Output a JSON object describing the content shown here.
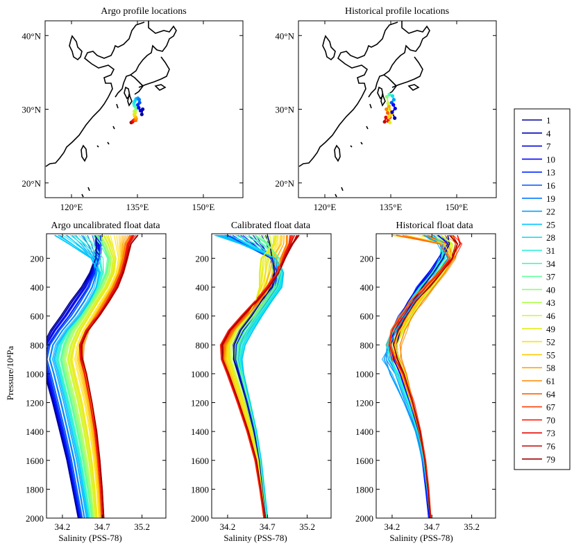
{
  "maps": [
    {
      "title": "Argo profile locations",
      "x_ticks": [
        "120°E",
        "135°E",
        "150°E"
      ],
      "y_ticks": [
        "20°N",
        "30°N",
        "40°N"
      ],
      "track_points": [
        [
          133.6,
          28.2,
          79
        ],
        [
          133.9,
          28.3,
          76
        ],
        [
          134.0,
          28.4,
          73
        ],
        [
          134.2,
          28.5,
          70
        ],
        [
          134.4,
          28.6,
          67
        ],
        [
          134.6,
          28.5,
          64
        ],
        [
          134.7,
          28.7,
          61
        ],
        [
          134.6,
          28.9,
          58
        ],
        [
          134.4,
          29.1,
          55
        ],
        [
          134.3,
          29.3,
          52
        ],
        [
          134.5,
          29.5,
          49
        ],
        [
          134.3,
          29.7,
          46
        ],
        [
          134.6,
          29.9,
          43
        ],
        [
          134.9,
          30.1,
          40
        ],
        [
          134.6,
          30.3,
          37
        ],
        [
          134.3,
          30.5,
          34
        ],
        [
          134.2,
          30.8,
          31
        ],
        [
          134.4,
          31.1,
          28
        ],
        [
          134.7,
          31.4,
          25
        ],
        [
          135.1,
          31.5,
          22
        ],
        [
          135.4,
          31.3,
          19
        ],
        [
          135.5,
          30.9,
          16
        ],
        [
          135.1,
          30.6,
          13
        ],
        [
          135.3,
          30.2,
          10
        ],
        [
          135.7,
          29.8,
          7
        ],
        [
          136.2,
          30.0,
          4
        ],
        [
          136.0,
          29.3,
          1
        ]
      ]
    },
    {
      "title": "Historical profile locations",
      "x_ticks": [
        "120°E",
        "135°E",
        "150°E"
      ],
      "y_ticks": [
        "20°N",
        "30°N",
        "40°N"
      ],
      "track_points": [
        [
          133.6,
          28.3,
          76
        ],
        [
          133.9,
          28.9,
          73
        ],
        [
          134.4,
          28.4,
          70
        ],
        [
          134.8,
          28.9,
          67
        ],
        [
          134.3,
          29.5,
          64
        ],
        [
          134.0,
          30.0,
          61
        ],
        [
          134.6,
          30.4,
          58
        ],
        [
          135.2,
          29.4,
          55
        ],
        [
          134.6,
          29.0,
          52
        ],
        [
          134.8,
          28.2,
          49
        ],
        [
          134.4,
          30.8,
          46
        ],
        [
          134.1,
          31.7,
          40
        ],
        [
          134.7,
          32.0,
          34
        ],
        [
          135.4,
          31.8,
          28
        ],
        [
          135.7,
          31.3,
          22
        ],
        [
          135.2,
          30.9,
          16
        ],
        [
          135.6,
          30.6,
          10
        ],
        [
          136.0,
          30.1,
          7
        ],
        [
          135.3,
          29.6,
          4
        ],
        [
          135.9,
          28.8,
          1
        ]
      ]
    }
  ],
  "chart_data": [
    {
      "type": "line",
      "title": "Argo uncalibrated float data",
      "xlabel": "Salinity (PSS-78)",
      "ylabel": "Pressure/10⁴Pa",
      "xlim": [
        34.0,
        35.5
      ],
      "ylim": [
        2000,
        30
      ],
      "x_ticks": [
        34.2,
        34.7,
        35.2
      ],
      "y_ticks": [
        200,
        400,
        600,
        800,
        1000,
        1200,
        1400,
        1600,
        1800,
        2000
      ],
      "pressure_levels": [
        40,
        100,
        200,
        300,
        400,
        500,
        600,
        700,
        800,
        900,
        1000,
        1200,
        1400,
        1600,
        1800,
        2000
      ],
      "series": [
        {
          "cycle": 1,
          "values": [
            34.62,
            34.63,
            34.62,
            34.55,
            34.44,
            34.3,
            34.18,
            34.05,
            33.96,
            33.93,
            33.98,
            34.08,
            34.17,
            34.26,
            34.33,
            34.4
          ]
        },
        {
          "cycle": 13,
          "values": [
            34.68,
            34.68,
            34.66,
            34.6,
            34.52,
            34.4,
            34.28,
            34.14,
            34.02,
            33.98,
            34.03,
            34.12,
            34.21,
            34.29,
            34.36,
            34.43
          ]
        },
        {
          "cycle": 25,
          "values": [
            34.1,
            34.28,
            34.56,
            34.66,
            34.63,
            34.54,
            34.42,
            34.26,
            34.14,
            34.1,
            34.15,
            34.24,
            34.32,
            34.4,
            34.46,
            34.52
          ]
        },
        {
          "cycle": 37,
          "values": [
            34.62,
            34.7,
            34.78,
            34.75,
            34.67,
            34.56,
            34.44,
            34.3,
            34.22,
            34.18,
            34.22,
            34.31,
            34.39,
            34.46,
            34.52,
            34.57
          ]
        },
        {
          "cycle": 49,
          "values": [
            34.75,
            34.8,
            34.86,
            34.84,
            34.76,
            34.64,
            34.53,
            34.42,
            34.34,
            34.3,
            34.34,
            34.43,
            34.5,
            34.56,
            34.6,
            34.63
          ]
        },
        {
          "cycle": 61,
          "values": [
            35.05,
            35.0,
            34.97,
            34.92,
            34.84,
            34.74,
            34.63,
            34.52,
            34.46,
            34.45,
            34.49,
            34.56,
            34.61,
            34.65,
            34.68,
            34.7
          ]
        },
        {
          "cycle": 70,
          "values": [
            35.08,
            35.02,
            34.99,
            34.94,
            34.87,
            34.76,
            34.64,
            34.5,
            34.42,
            34.43,
            34.48,
            34.55,
            34.61,
            34.65,
            34.68,
            34.7
          ]
        },
        {
          "cycle": 79,
          "values": [
            35.15,
            35.06,
            35.01,
            34.96,
            34.89,
            34.78,
            34.66,
            34.52,
            34.44,
            34.45,
            34.5,
            34.57,
            34.63,
            34.67,
            34.7,
            34.72
          ]
        }
      ]
    },
    {
      "type": "line",
      "title": "Calibrated float data",
      "xlabel": "Salinity (PSS-78)",
      "ylabel": "",
      "xlim": [
        34.0,
        35.5
      ],
      "ylim": [
        2000,
        30
      ],
      "x_ticks": [
        34.2,
        34.7,
        35.2
      ],
      "y_ticks": [
        200,
        400,
        600,
        800,
        1000,
        1200,
        1400,
        1600,
        1800,
        2000
      ],
      "pressure_levels": [
        40,
        100,
        200,
        300,
        400,
        500,
        600,
        700,
        800,
        900,
        1000,
        1200,
        1400,
        1600,
        1800,
        2000
      ],
      "series": [
        {
          "cycle": 1,
          "values": [
            34.7,
            34.73,
            34.76,
            34.79,
            34.76,
            34.62,
            34.5,
            34.36,
            34.28,
            34.28,
            34.34,
            34.44,
            34.53,
            34.6,
            34.64,
            34.68
          ]
        },
        {
          "cycle": 13,
          "values": [
            34.2,
            34.4,
            34.75,
            34.82,
            34.8,
            34.68,
            34.55,
            34.4,
            34.31,
            34.3,
            34.35,
            34.45,
            34.54,
            34.61,
            34.65,
            34.69
          ]
        },
        {
          "cycle": 25,
          "values": [
            34.05,
            34.38,
            34.8,
            34.9,
            34.88,
            34.75,
            34.63,
            34.52,
            34.42,
            34.38,
            34.4,
            34.48,
            34.56,
            34.62,
            34.66,
            34.7
          ]
        },
        {
          "cycle": 37,
          "values": [
            34.55,
            34.7,
            34.85,
            34.86,
            34.8,
            34.68,
            34.55,
            34.42,
            34.34,
            34.32,
            34.37,
            34.47,
            34.55,
            34.61,
            34.65,
            34.69
          ]
        },
        {
          "cycle": 49,
          "values": [
            34.8,
            34.78,
            34.62,
            34.6,
            34.6,
            34.55,
            34.45,
            34.3,
            34.22,
            34.22,
            34.28,
            34.4,
            34.5,
            34.58,
            34.63,
            34.67
          ]
        },
        {
          "cycle": 61,
          "values": [
            34.95,
            34.95,
            34.88,
            34.83,
            34.73,
            34.6,
            34.44,
            34.28,
            34.17,
            34.15,
            34.21,
            34.33,
            34.45,
            34.55,
            34.61,
            34.66
          ]
        },
        {
          "cycle": 70,
          "values": [
            35.0,
            34.98,
            34.9,
            34.82,
            34.7,
            34.55,
            34.38,
            34.22,
            34.12,
            34.13,
            34.2,
            34.33,
            34.45,
            34.55,
            34.61,
            34.66
          ]
        },
        {
          "cycle": 79,
          "values": [
            35.1,
            35.02,
            34.92,
            34.84,
            34.72,
            34.56,
            34.39,
            34.23,
            34.13,
            34.14,
            34.21,
            34.34,
            34.46,
            34.56,
            34.62,
            34.67
          ]
        }
      ]
    },
    {
      "type": "line",
      "title": "Historical  float data",
      "xlabel": "Salinity (PSS-78)",
      "ylabel": "",
      "xlim": [
        34.0,
        35.5
      ],
      "ylim": [
        2000,
        30
      ],
      "x_ticks": [
        34.2,
        34.7,
        35.2
      ],
      "y_ticks": [
        200,
        400,
        600,
        800,
        1000,
        1200,
        1400,
        1600,
        1800,
        2000
      ],
      "pressure_levels": [
        40,
        100,
        200,
        300,
        400,
        500,
        600,
        700,
        800,
        900,
        1000,
        1200,
        1400,
        1600,
        1800,
        2000
      ],
      "series": [
        {
          "cycle": 1,
          "values": [
            34.9,
            34.92,
            34.84,
            34.72,
            34.58,
            34.46,
            34.36,
            34.3,
            34.26,
            34.28,
            34.34,
            34.44,
            34.53,
            34.6,
            34.64,
            34.67
          ]
        },
        {
          "cycle": 10,
          "values": [
            34.78,
            34.9,
            34.78,
            34.66,
            34.52,
            34.4,
            34.3,
            34.22,
            34.18,
            34.22,
            34.3,
            34.42,
            34.52,
            34.59,
            34.63,
            34.67
          ]
        },
        {
          "cycle": 22,
          "values": [
            34.6,
            34.8,
            34.9,
            34.78,
            34.62,
            34.48,
            34.36,
            34.26,
            34.16,
            34.1,
            34.18,
            34.35,
            34.5,
            34.59,
            34.64,
            34.68
          ]
        },
        {
          "cycle": 31,
          "values": [
            34.7,
            34.85,
            34.82,
            34.7,
            34.56,
            34.42,
            34.31,
            34.22,
            34.14,
            34.18,
            34.28,
            34.41,
            34.52,
            34.6,
            34.64,
            34.68
          ]
        },
        {
          "cycle": 46,
          "values": [
            34.82,
            34.96,
            34.94,
            34.84,
            34.7,
            34.56,
            34.44,
            34.34,
            34.26,
            34.28,
            34.36,
            34.46,
            34.55,
            34.61,
            34.65,
            34.68
          ]
        },
        {
          "cycle": 55,
          "values": [
            34.2,
            34.85,
            34.96,
            34.8,
            34.64,
            34.52,
            34.4,
            34.3,
            34.22,
            34.24,
            34.32,
            34.44,
            34.54,
            34.61,
            34.65,
            34.68
          ]
        },
        {
          "cycle": 61,
          "values": [
            34.95,
            35.0,
            34.98,
            34.86,
            34.72,
            34.58,
            34.46,
            34.36,
            34.3,
            34.32,
            34.38,
            34.46,
            34.55,
            34.61,
            34.65,
            34.68
          ]
        },
        {
          "cycle": 64,
          "values": [
            34.25,
            34.8,
            34.92,
            34.78,
            34.6,
            34.42,
            34.3,
            34.2,
            34.18,
            34.24,
            34.33,
            34.45,
            34.54,
            34.61,
            34.65,
            34.68
          ]
        },
        {
          "cycle": 70,
          "values": [
            35.02,
            35.05,
            34.95,
            34.8,
            34.62,
            34.46,
            34.32,
            34.2,
            34.16,
            34.24,
            34.34,
            34.46,
            34.55,
            34.61,
            34.65,
            34.68
          ]
        },
        {
          "cycle": 79,
          "values": [
            34.92,
            35.02,
            34.96,
            34.82,
            34.66,
            34.5,
            34.38,
            34.27,
            34.22,
            34.27,
            34.35,
            34.46,
            34.55,
            34.61,
            34.65,
            34.68
          ]
        }
      ]
    }
  ],
  "legend": {
    "entries": [
      "1",
      "4",
      "7",
      "10",
      "13",
      "16",
      "19",
      "22",
      "25",
      "28",
      "31",
      "34",
      "37",
      "40",
      "43",
      "46",
      "49",
      "52",
      "55",
      "58",
      "61",
      "64",
      "67",
      "70",
      "73",
      "76",
      "79"
    ],
    "colors": [
      "#00008f",
      "#0000bf",
      "#0000ef",
      "#001fff",
      "#004fff",
      "#007fff",
      "#00afff",
      "#00dfff",
      "#10ffef",
      "#40ffbf",
      "#70ff8f",
      "#a0ff60",
      "#d0ff30",
      "#ffff00",
      "#ffcf00",
      "#ff9f00",
      "#ff7000",
      "#ff4000",
      "#ff1000",
      "#df0000",
      "#b00000",
      "#800000",
      "#800000",
      "#800000",
      "#800000",
      "#800000",
      "#800000"
    ]
  },
  "colormap": [
    "#00008f",
    "#0000ff",
    "#0070ff",
    "#00dfff",
    "#50ffaf",
    "#c0ff40",
    "#ffe000",
    "#ff8000",
    "#ff1000",
    "#a00000"
  ]
}
